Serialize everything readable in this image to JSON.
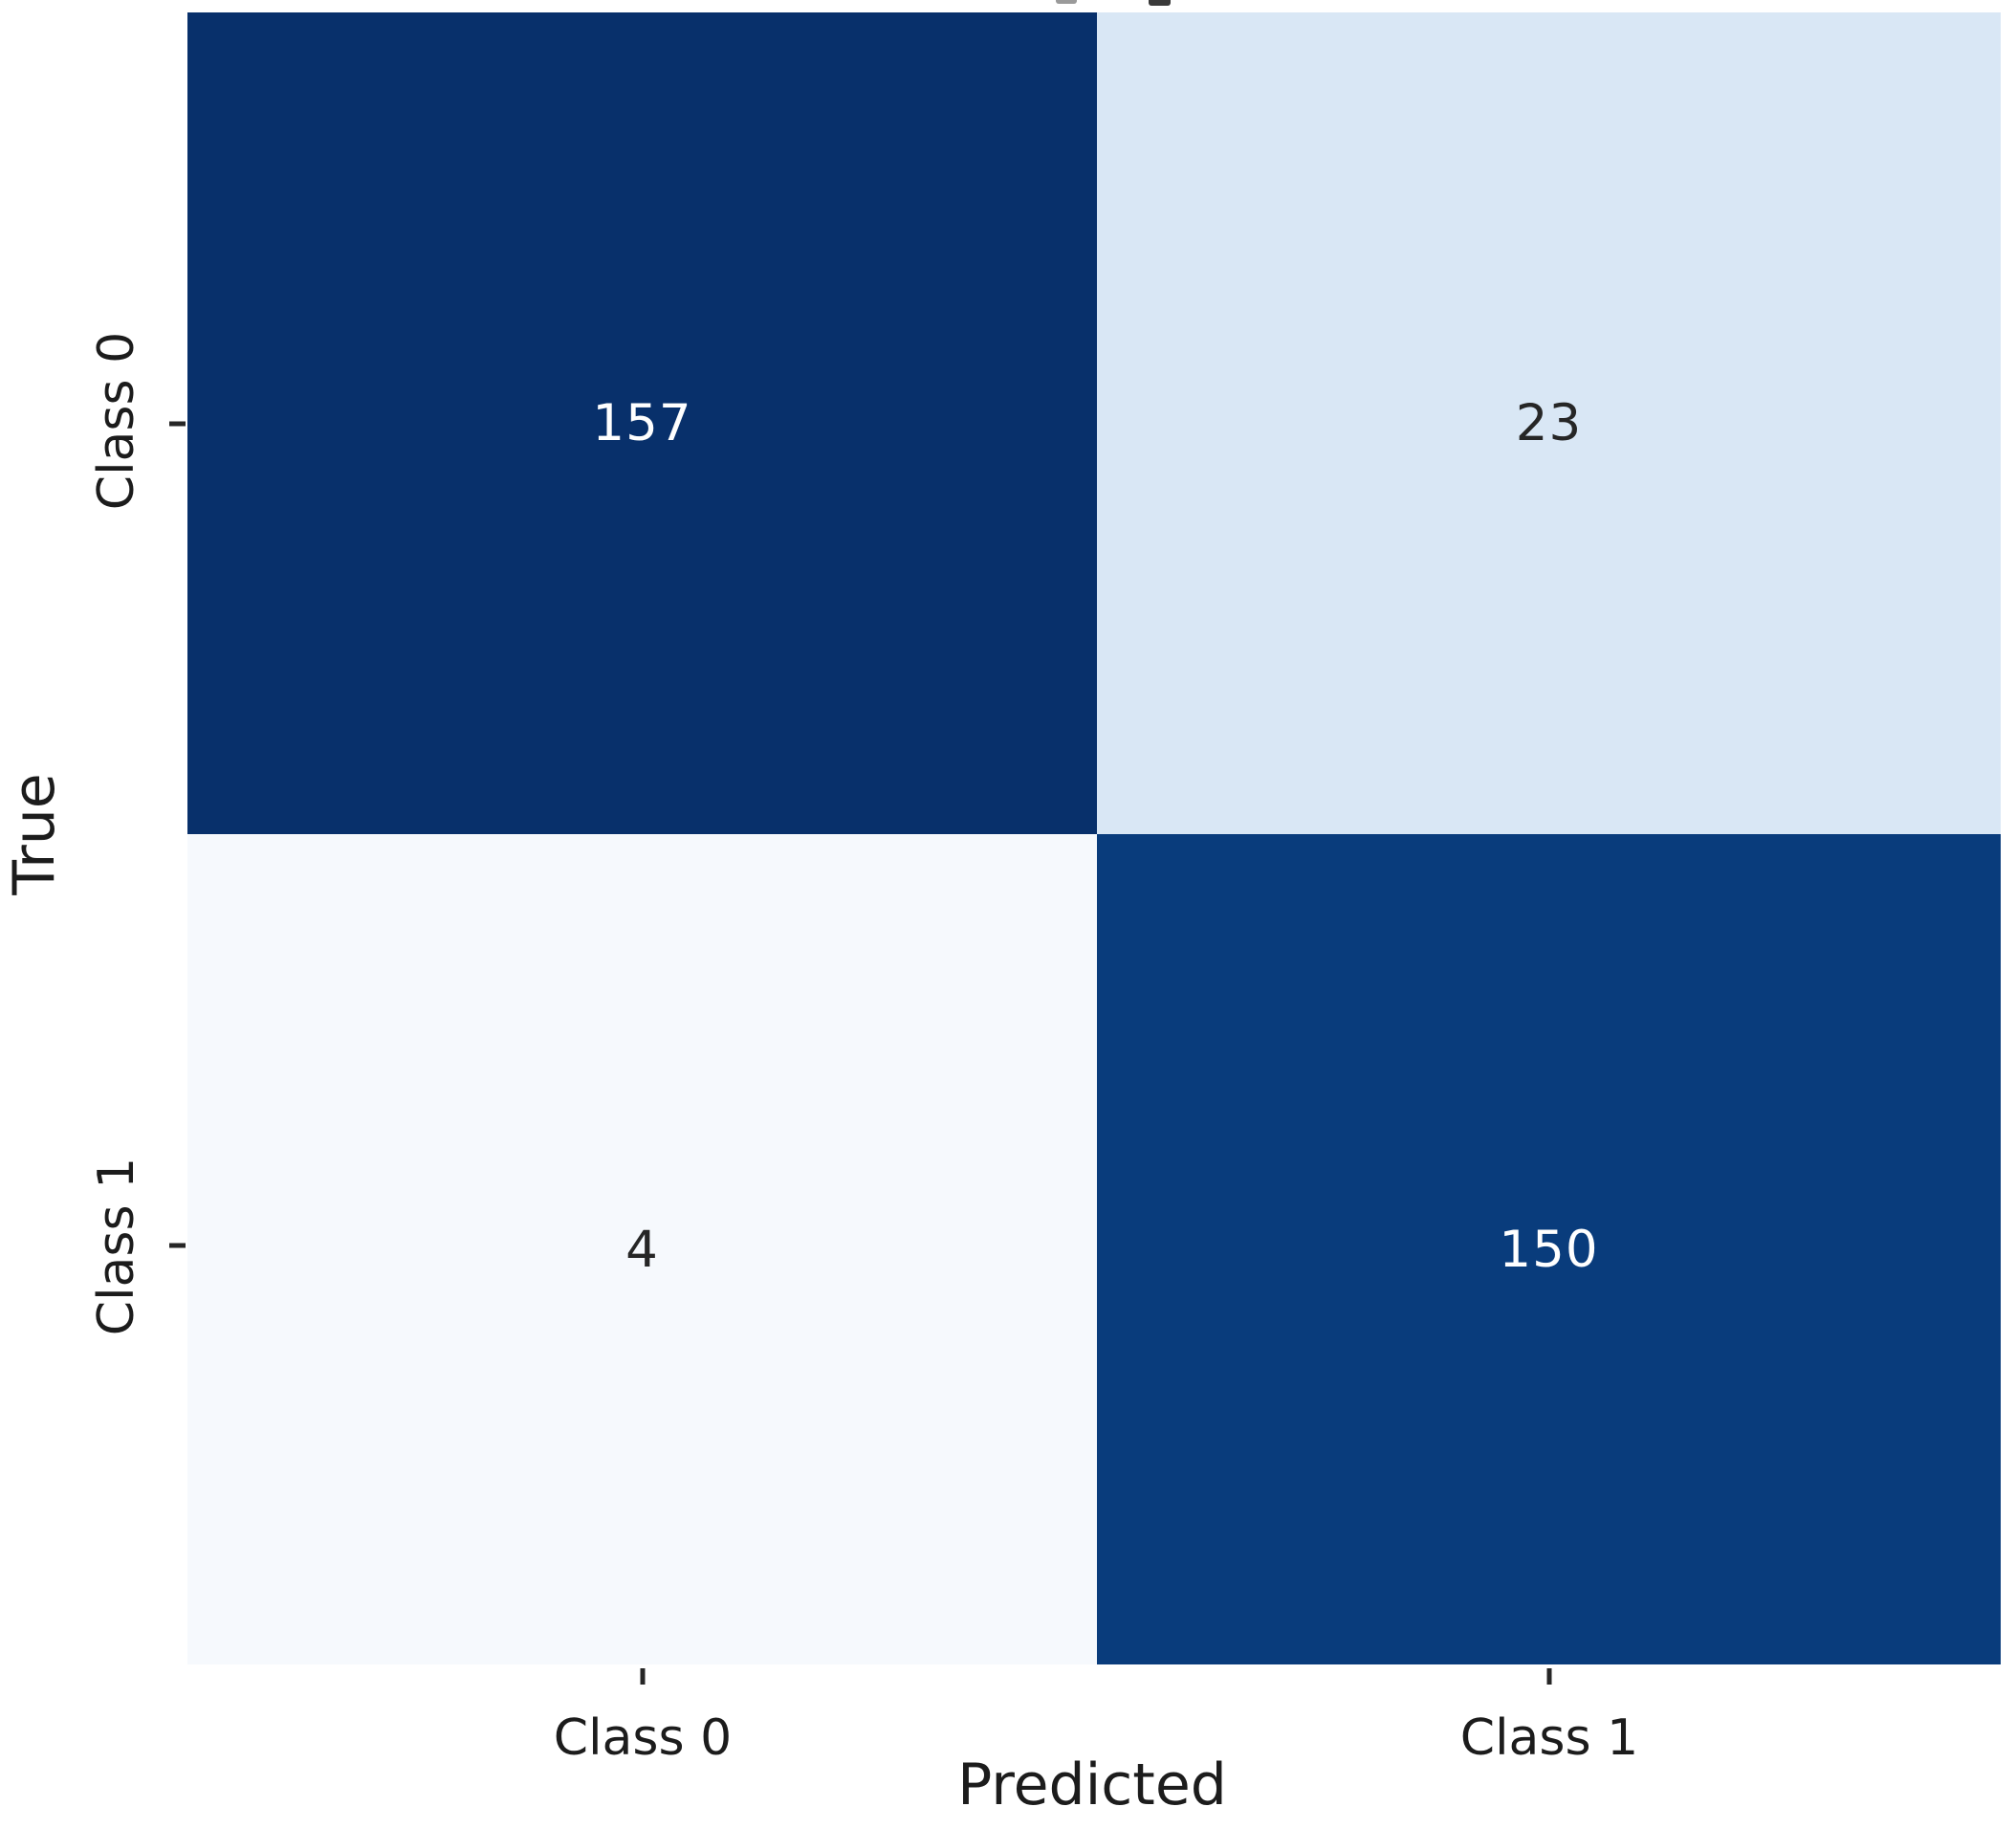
{
  "figure": {
    "background": "#ffffff",
    "text_color": "#1c1c1c"
  },
  "chart_data": {
    "type": "heatmap",
    "subtype": "confusion_matrix",
    "title": "",
    "xlabel": "Predicted",
    "ylabel": "True",
    "x_categories": [
      "Class 0",
      "Class 1"
    ],
    "y_categories": [
      "Class 0",
      "Class 1"
    ],
    "matrix": [
      [
        157,
        23
      ],
      [
        4,
        150
      ]
    ],
    "value_min": 4,
    "value_max": 157,
    "colormap": "Blues",
    "legend_position": "none",
    "grid": false,
    "cells": [
      {
        "true_label": "Class 0",
        "predicted_label": "Class 0",
        "value": 157,
        "bg": "#08306b",
        "fg": "#ffffff"
      },
      {
        "true_label": "Class 0",
        "predicted_label": "Class 1",
        "value": 23,
        "bg": "#d9e7f5",
        "fg": "#262626"
      },
      {
        "true_label": "Class 1",
        "predicted_label": "Class 0",
        "value": 4,
        "bg": "#f6f9fd",
        "fg": "#262626"
      },
      {
        "true_label": "Class 1",
        "predicted_label": "Class 1",
        "value": 150,
        "bg": "#093c7c",
        "fg": "#ffffff"
      }
    ]
  }
}
